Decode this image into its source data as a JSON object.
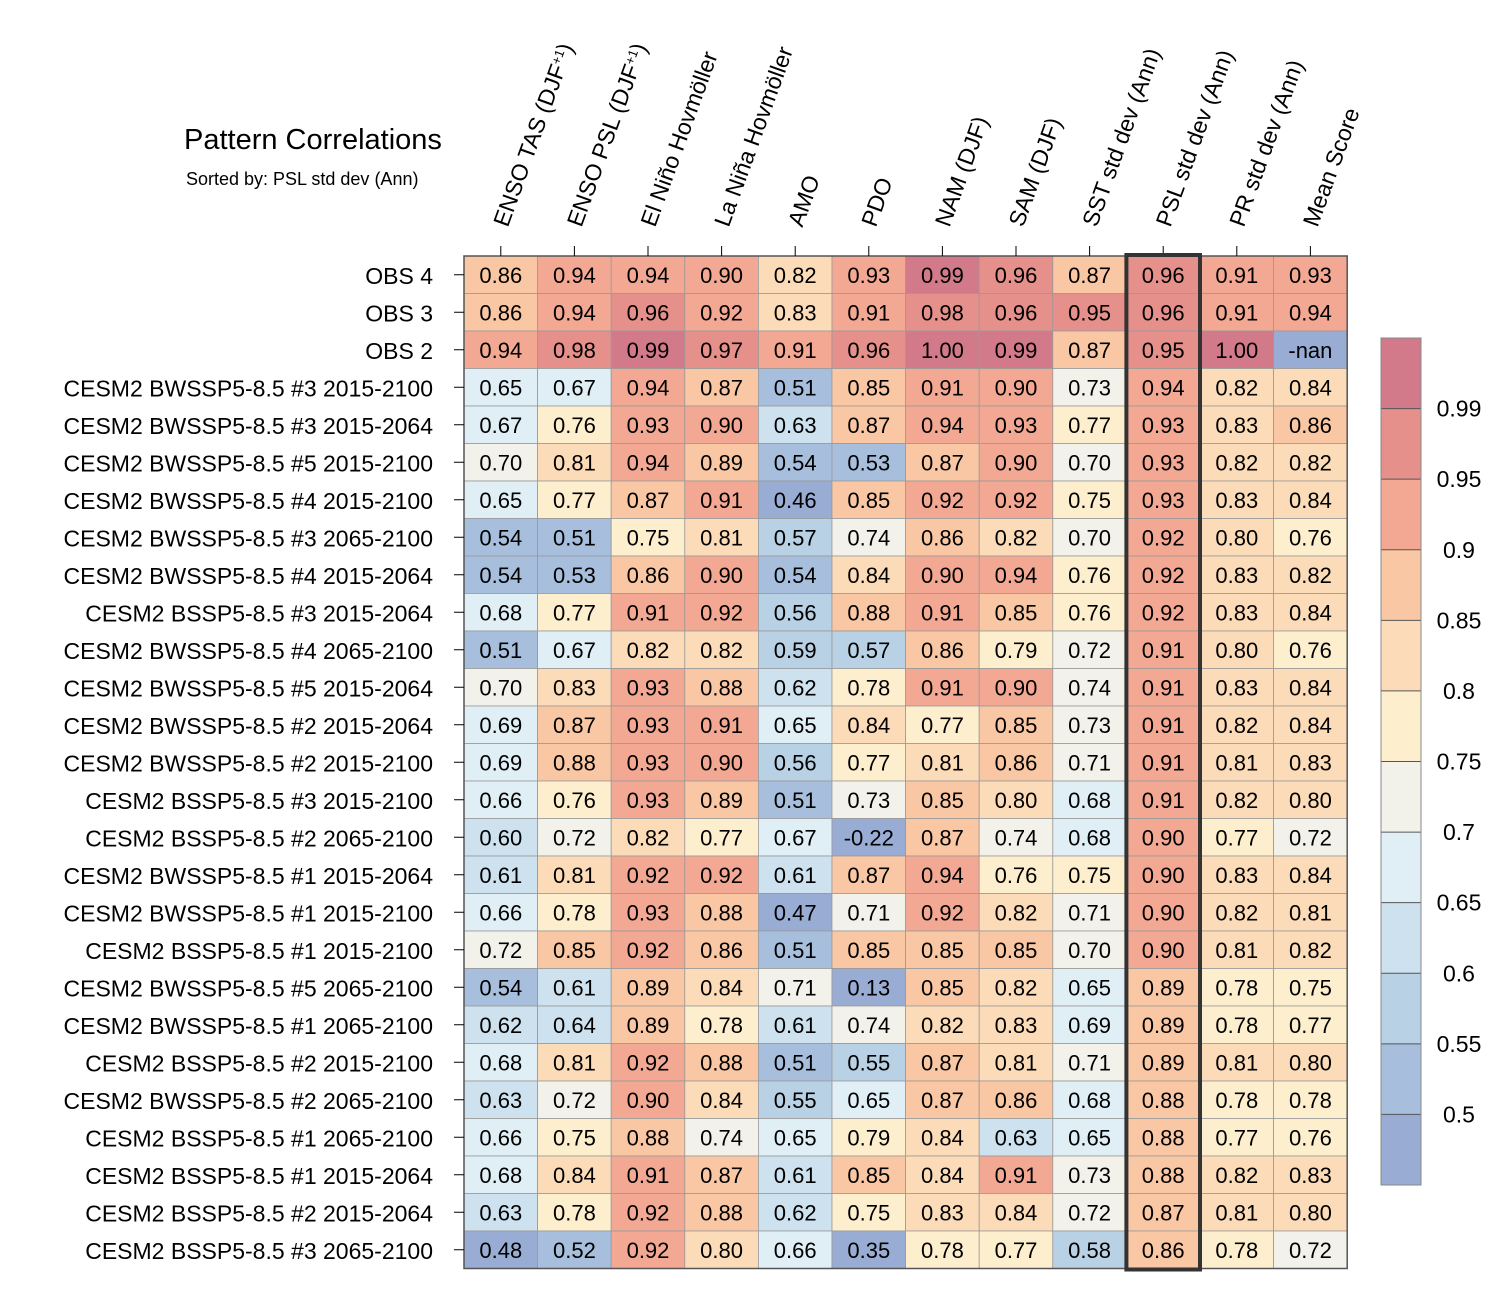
{
  "chart_data": {
    "type": "heatmap",
    "title": "Pattern Correlations",
    "subtitle": "Sorted by: PSL std dev (Ann)",
    "sorted_by_column": "PSL std dev (Ann)",
    "columns": [
      {
        "label": "ENSO TAS (DJF",
        "sup": "+1",
        "suffix": ")"
      },
      {
        "label": "ENSO PSL (DJF",
        "sup": "+1",
        "suffix": ")"
      },
      {
        "label": "El Niño Hovmöller",
        "sup": "",
        "suffix": ""
      },
      {
        "label": "La Niña Hovmöller",
        "sup": "",
        "suffix": ""
      },
      {
        "label": "AMO",
        "sup": "",
        "suffix": ""
      },
      {
        "label": "PDO",
        "sup": "",
        "suffix": ""
      },
      {
        "label": "NAM (DJF)",
        "sup": "",
        "suffix": ""
      },
      {
        "label": "SAM (DJF)",
        "sup": "",
        "suffix": ""
      },
      {
        "label": "SST std dev (Ann)",
        "sup": "",
        "suffix": ""
      },
      {
        "label": "PSL std dev (Ann)",
        "sup": "",
        "suffix": ""
      },
      {
        "label": "PR std dev (Ann)",
        "sup": "",
        "suffix": ""
      },
      {
        "label": "Mean Score",
        "sup": "",
        "suffix": ""
      }
    ],
    "rows": [
      {
        "label": "OBS 4",
        "values": [
          "0.86",
          "0.94",
          "0.94",
          "0.90",
          "0.82",
          "0.93",
          "0.99",
          "0.96",
          "0.87",
          "0.96",
          "0.91",
          "0.93"
        ]
      },
      {
        "label": "OBS 3",
        "values": [
          "0.86",
          "0.94",
          "0.96",
          "0.92",
          "0.83",
          "0.91",
          "0.98",
          "0.96",
          "0.95",
          "0.96",
          "0.91",
          "0.94"
        ]
      },
      {
        "label": "OBS 2",
        "values": [
          "0.94",
          "0.98",
          "0.99",
          "0.97",
          "0.91",
          "0.96",
          "1.00",
          "0.99",
          "0.87",
          "0.95",
          "1.00",
          "-nan"
        ]
      },
      {
        "label": "CESM2 BWSSP5-8.5 #3 2015-2100",
        "values": [
          "0.65",
          "0.67",
          "0.94",
          "0.87",
          "0.51",
          "0.85",
          "0.91",
          "0.90",
          "0.73",
          "0.94",
          "0.82",
          "0.84"
        ]
      },
      {
        "label": "CESM2 BWSSP5-8.5 #3 2015-2064",
        "values": [
          "0.67",
          "0.76",
          "0.93",
          "0.90",
          "0.63",
          "0.87",
          "0.94",
          "0.93",
          "0.77",
          "0.93",
          "0.83",
          "0.86"
        ]
      },
      {
        "label": "CESM2 BWSSP5-8.5 #5 2015-2100",
        "values": [
          "0.70",
          "0.81",
          "0.94",
          "0.89",
          "0.54",
          "0.53",
          "0.87",
          "0.90",
          "0.70",
          "0.93",
          "0.82",
          "0.82"
        ]
      },
      {
        "label": "CESM2 BWSSP5-8.5 #4 2015-2100",
        "values": [
          "0.65",
          "0.77",
          "0.87",
          "0.91",
          "0.46",
          "0.85",
          "0.92",
          "0.92",
          "0.75",
          "0.93",
          "0.83",
          "0.84"
        ]
      },
      {
        "label": "CESM2 BWSSP5-8.5 #3 2065-2100",
        "values": [
          "0.54",
          "0.51",
          "0.75",
          "0.81",
          "0.57",
          "0.74",
          "0.86",
          "0.82",
          "0.70",
          "0.92",
          "0.80",
          "0.76"
        ]
      },
      {
        "label": "CESM2 BWSSP5-8.5 #4 2015-2064",
        "values": [
          "0.54",
          "0.53",
          "0.86",
          "0.90",
          "0.54",
          "0.84",
          "0.90",
          "0.94",
          "0.76",
          "0.92",
          "0.83",
          "0.82"
        ]
      },
      {
        "label": "CESM2 BSSP5-8.5 #3 2015-2064",
        "values": [
          "0.68",
          "0.77",
          "0.91",
          "0.92",
          "0.56",
          "0.88",
          "0.91",
          "0.85",
          "0.76",
          "0.92",
          "0.83",
          "0.84"
        ]
      },
      {
        "label": "CESM2 BWSSP5-8.5 #4 2065-2100",
        "values": [
          "0.51",
          "0.67",
          "0.82",
          "0.82",
          "0.59",
          "0.57",
          "0.86",
          "0.79",
          "0.72",
          "0.91",
          "0.80",
          "0.76"
        ]
      },
      {
        "label": "CESM2 BWSSP5-8.5 #5 2015-2064",
        "values": [
          "0.70",
          "0.83",
          "0.93",
          "0.88",
          "0.62",
          "0.78",
          "0.91",
          "0.90",
          "0.74",
          "0.91",
          "0.83",
          "0.84"
        ]
      },
      {
        "label": "CESM2 BWSSP5-8.5 #2 2015-2064",
        "values": [
          "0.69",
          "0.87",
          "0.93",
          "0.91",
          "0.65",
          "0.84",
          "0.77",
          "0.85",
          "0.73",
          "0.91",
          "0.82",
          "0.84"
        ]
      },
      {
        "label": "CESM2 BWSSP5-8.5 #2 2015-2100",
        "values": [
          "0.69",
          "0.88",
          "0.93",
          "0.90",
          "0.56",
          "0.77",
          "0.81",
          "0.86",
          "0.71",
          "0.91",
          "0.81",
          "0.83"
        ]
      },
      {
        "label": "CESM2 BSSP5-8.5 #3 2015-2100",
        "values": [
          "0.66",
          "0.76",
          "0.93",
          "0.89",
          "0.51",
          "0.73",
          "0.85",
          "0.80",
          "0.68",
          "0.91",
          "0.82",
          "0.80"
        ]
      },
      {
        "label": "CESM2 BSSP5-8.5 #2 2065-2100",
        "values": [
          "0.60",
          "0.72",
          "0.82",
          "0.77",
          "0.67",
          "-0.22",
          "0.87",
          "0.74",
          "0.68",
          "0.90",
          "0.77",
          "0.72"
        ]
      },
      {
        "label": "CESM2 BWSSP5-8.5 #1 2015-2064",
        "values": [
          "0.61",
          "0.81",
          "0.92",
          "0.92",
          "0.61",
          "0.87",
          "0.94",
          "0.76",
          "0.75",
          "0.90",
          "0.83",
          "0.84"
        ]
      },
      {
        "label": "CESM2 BWSSP5-8.5 #1 2015-2100",
        "values": [
          "0.66",
          "0.78",
          "0.93",
          "0.88",
          "0.47",
          "0.71",
          "0.92",
          "0.82",
          "0.71",
          "0.90",
          "0.82",
          "0.81"
        ]
      },
      {
        "label": "CESM2 BSSP5-8.5 #1 2015-2100",
        "values": [
          "0.72",
          "0.85",
          "0.92",
          "0.86",
          "0.51",
          "0.85",
          "0.85",
          "0.85",
          "0.70",
          "0.90",
          "0.81",
          "0.82"
        ]
      },
      {
        "label": "CESM2 BWSSP5-8.5 #5 2065-2100",
        "values": [
          "0.54",
          "0.61",
          "0.89",
          "0.84",
          "0.71",
          "0.13",
          "0.85",
          "0.82",
          "0.65",
          "0.89",
          "0.78",
          "0.75"
        ]
      },
      {
        "label": "CESM2 BWSSP5-8.5 #1 2065-2100",
        "values": [
          "0.62",
          "0.64",
          "0.89",
          "0.78",
          "0.61",
          "0.74",
          "0.82",
          "0.83",
          "0.69",
          "0.89",
          "0.78",
          "0.77"
        ]
      },
      {
        "label": "CESM2 BSSP5-8.5 #2 2015-2100",
        "values": [
          "0.68",
          "0.81",
          "0.92",
          "0.88",
          "0.51",
          "0.55",
          "0.87",
          "0.81",
          "0.71",
          "0.89",
          "0.81",
          "0.80"
        ]
      },
      {
        "label": "CESM2 BWSSP5-8.5 #2 2065-2100",
        "values": [
          "0.63",
          "0.72",
          "0.90",
          "0.84",
          "0.55",
          "0.65",
          "0.87",
          "0.86",
          "0.68",
          "0.88",
          "0.78",
          "0.78"
        ]
      },
      {
        "label": "CESM2 BSSP5-8.5 #1 2065-2100",
        "values": [
          "0.66",
          "0.75",
          "0.88",
          "0.74",
          "0.65",
          "0.79",
          "0.84",
          "0.63",
          "0.65",
          "0.88",
          "0.77",
          "0.76"
        ]
      },
      {
        "label": "CESM2 BSSP5-8.5 #1 2015-2064",
        "values": [
          "0.68",
          "0.84",
          "0.91",
          "0.87",
          "0.61",
          "0.85",
          "0.84",
          "0.91",
          "0.73",
          "0.88",
          "0.82",
          "0.83"
        ]
      },
      {
        "label": "CESM2 BSSP5-8.5 #2 2015-2064",
        "values": [
          "0.63",
          "0.78",
          "0.92",
          "0.88",
          "0.62",
          "0.75",
          "0.83",
          "0.84",
          "0.72",
          "0.87",
          "0.81",
          "0.80"
        ]
      },
      {
        "label": "CESM2 BSSP5-8.5 #3 2065-2100",
        "values": [
          "0.48",
          "0.52",
          "0.92",
          "0.80",
          "0.66",
          "0.35",
          "0.78",
          "0.77",
          "0.58",
          "0.86",
          "0.78",
          "0.72"
        ]
      }
    ],
    "colorbar": {
      "ticks": [
        "0.99",
        "0.95",
        "0.9",
        "0.85",
        "0.8",
        "0.75",
        "0.7",
        "0.65",
        "0.6",
        "0.55",
        "0.5"
      ],
      "bins": [
        {
          "min": 0.99,
          "color": "#d27a8a"
        },
        {
          "min": 0.95,
          "color": "#e5908b"
        },
        {
          "min": 0.9,
          "color": "#f3a893"
        },
        {
          "min": 0.85,
          "color": "#f9c7a3"
        },
        {
          "min": 0.8,
          "color": "#fcdcb8"
        },
        {
          "min": 0.75,
          "color": "#fdefce"
        },
        {
          "min": 0.7,
          "color": "#f3f2ea"
        },
        {
          "min": 0.65,
          "color": "#e0eef6"
        },
        {
          "min": 0.6,
          "color": "#cde1ee"
        },
        {
          "min": 0.55,
          "color": "#b8d1e4"
        },
        {
          "min": 0.5,
          "color": "#a7bfdc"
        },
        {
          "min": -100,
          "color": "#99acd3"
        }
      ],
      "nan_color": "#99acd3"
    },
    "highlight_color": "#333333"
  }
}
